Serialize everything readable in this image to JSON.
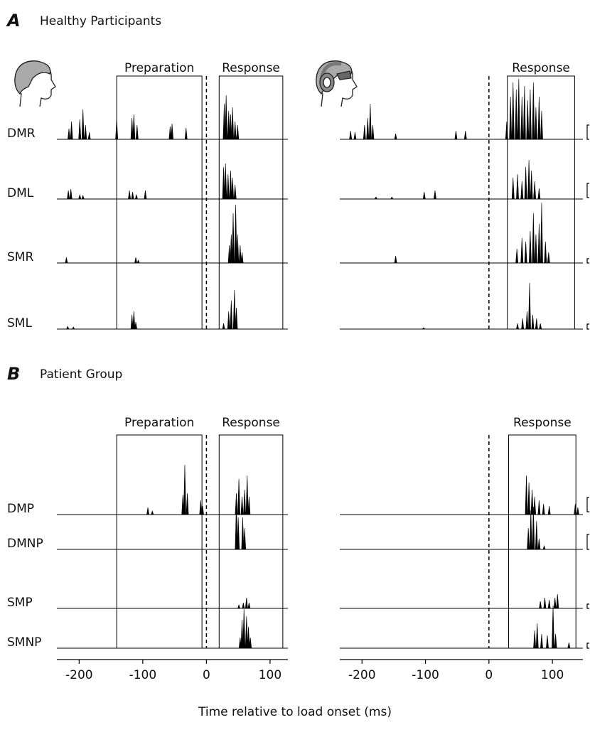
{
  "panels": [
    {
      "letter": "A",
      "title": "Healthy Participants"
    },
    {
      "letter": "B",
      "title": "Patient Group"
    }
  ],
  "xlabel": "Time relative to load onset (ms)",
  "chart_data": [
    {
      "type": "stick",
      "xlim": [
        -235,
        128
      ],
      "vline": 0,
      "regions": [
        {
          "label": "Preparation",
          "x": [
            -141,
            -7
          ]
        },
        {
          "label": "Response",
          "x": [
            20,
            120
          ]
        }
      ],
      "series": [
        {
          "name": "DMR",
          "color": "#000000",
          "x": [
            -216,
            -212,
            -199,
            -194,
            -190,
            -184,
            -141,
            -117,
            -114,
            -109,
            -57,
            -54,
            -32,
            28,
            31,
            35,
            38,
            41,
            45,
            49
          ],
          "values": [
            15,
            25,
            28,
            42,
            20,
            10,
            28,
            30,
            35,
            20,
            18,
            22,
            16,
            50,
            62,
            40,
            35,
            45,
            25,
            20
          ]
        },
        {
          "name": "DML",
          "color": "#000000",
          "x": [
            -217,
            -213,
            -199,
            -194,
            -121,
            -116,
            -110,
            -96,
            27,
            30,
            34,
            38,
            41,
            45
          ],
          "values": [
            12,
            14,
            6,
            5,
            12,
            10,
            6,
            12,
            45,
            50,
            35,
            40,
            30,
            20
          ]
        },
        {
          "name": "SMR",
          "color": "#000000",
          "x": [
            -220,
            -111,
            -107,
            36,
            39,
            42,
            46,
            49,
            53,
            56
          ],
          "values": [
            8,
            8,
            4,
            25,
            40,
            70,
            82,
            40,
            25,
            15
          ]
        },
        {
          "name": "SML",
          "color": "#000000",
          "x": [
            -218,
            -209,
            -117,
            -114,
            -111,
            27,
            35,
            39,
            44,
            47
          ],
          "values": [
            4,
            3,
            20,
            25,
            10,
            8,
            25,
            40,
            55,
            30
          ]
        }
      ]
    },
    {
      "type": "stick",
      "xlim": [
        -235,
        148
      ],
      "vline": 0,
      "regions": [
        {
          "label": "Response",
          "x": [
            29,
            135
          ]
        }
      ],
      "series": [
        {
          "color": "#000000",
          "x": [
            -218,
            -211,
            -196,
            -191,
            -187,
            -183,
            -147,
            -52,
            -37,
            28,
            34,
            38,
            43,
            47,
            52,
            56,
            61,
            65,
            70,
            74,
            79,
            83
          ],
          "values": [
            12,
            10,
            20,
            30,
            50,
            20,
            8,
            12,
            12,
            25,
            60,
            80,
            70,
            85,
            60,
            75,
            55,
            70,
            80,
            45,
            60,
            40
          ]
        },
        {
          "color": "#000000",
          "x": [
            -178,
            -153,
            -102,
            -85,
            38,
            45,
            52,
            58,
            63,
            67,
            72,
            79
          ],
          "values": [
            3,
            3,
            10,
            12,
            30,
            35,
            25,
            45,
            55,
            40,
            25,
            15
          ]
        },
        {
          "color": "#000000",
          "x": [
            -147,
            44,
            52,
            58,
            65,
            70,
            74,
            79,
            83,
            89,
            94
          ],
          "values": [
            10,
            20,
            35,
            30,
            45,
            70,
            40,
            55,
            85,
            30,
            15
          ]
        },
        {
          "color": "#000000",
          "x": [
            -103,
            45,
            53,
            60,
            64,
            69,
            75,
            81
          ],
          "values": [
            2,
            8,
            15,
            25,
            65,
            20,
            15,
            8
          ]
        }
      ]
    },
    {
      "type": "stick",
      "xlim": [
        -235,
        128
      ],
      "vline": 0,
      "xticks": [
        -200,
        -100,
        0,
        100
      ],
      "regions": [
        {
          "label": "Preparation",
          "x": [
            -141,
            -7
          ]
        },
        {
          "label": "Response",
          "x": [
            20,
            120
          ]
        }
      ],
      "series": [
        {
          "name": "DMP",
          "color": "#000000",
          "x": [
            -92,
            -85,
            -37,
            -34,
            -30,
            -9,
            -6,
            47,
            51,
            56,
            60,
            64,
            67
          ],
          "values": [
            10,
            5,
            28,
            70,
            30,
            20,
            12,
            30,
            50,
            25,
            35,
            55,
            25
          ]
        },
        {
          "name": "DMNP",
          "color": "#000000",
          "x": [
            47,
            50,
            57,
            60
          ],
          "values": [
            65,
            45,
            45,
            30
          ]
        },
        {
          "name": "SMP",
          "color": "#000000",
          "x": [
            51,
            58,
            63,
            67
          ],
          "values": [
            5,
            8,
            15,
            8
          ]
        },
        {
          "name": "SMNP",
          "color": "#000000",
          "x": [
            53,
            56,
            59,
            63,
            66,
            69
          ],
          "values": [
            15,
            40,
            55,
            45,
            30,
            15
          ]
        }
      ]
    },
    {
      "type": "stick",
      "xlim": [
        -235,
        148
      ],
      "vline": 0,
      "xticks": [
        -200,
        -100,
        0,
        100
      ],
      "regions": [
        {
          "label": "Response",
          "x": [
            31,
            137
          ]
        }
      ],
      "series": [
        {
          "color": "#000000",
          "x": [
            59,
            63,
            68,
            72,
            79,
            86,
            95,
            136,
            140
          ],
          "values": [
            55,
            45,
            35,
            25,
            20,
            15,
            12,
            15,
            10
          ]
        },
        {
          "color": "#000000",
          "x": [
            62,
            66,
            70,
            75,
            79,
            87
          ],
          "values": [
            30,
            55,
            60,
            40,
            15,
            5
          ]
        },
        {
          "color": "#000000",
          "x": [
            81,
            88,
            95,
            104,
            108
          ],
          "values": [
            10,
            15,
            12,
            15,
            20
          ]
        },
        {
          "color": "#000000",
          "x": [
            72,
            76,
            83,
            92,
            101,
            105,
            126
          ],
          "values": [
            25,
            35,
            20,
            18,
            60,
            20,
            8
          ]
        }
      ]
    }
  ]
}
